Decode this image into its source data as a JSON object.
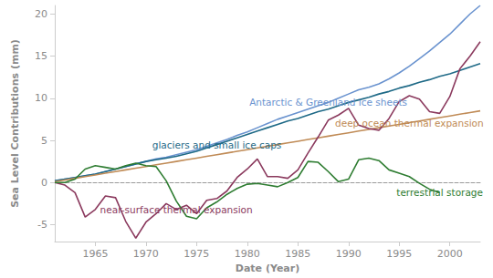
{
  "chart_data": {
    "type": "line",
    "x_label": "Date (Year)",
    "y_label": "Sea Level Contributions (mm)",
    "x": [
      1961,
      1962,
      1963,
      1964,
      1965,
      1966,
      1967,
      1968,
      1969,
      1970,
      1971,
      1972,
      1973,
      1974,
      1975,
      1976,
      1977,
      1978,
      1979,
      1980,
      1981,
      1982,
      1983,
      1984,
      1985,
      1986,
      1987,
      1988,
      1989,
      1990,
      1991,
      1992,
      1993,
      1994,
      1995,
      1996,
      1997,
      1998,
      1999,
      2000,
      2001,
      2002,
      2003
    ],
    "series": [
      {
        "name": "Antarctic & Greenland ice sheets",
        "color": "#6a93cf",
        "values": [
          0.2,
          0.4,
          0.6,
          0.8,
          1.0,
          1.3,
          1.6,
          1.9,
          2.2,
          2.5,
          2.8,
          3.0,
          3.3,
          3.6,
          3.9,
          4.3,
          4.7,
          5.1,
          5.6,
          6.0,
          6.5,
          7.0,
          7.5,
          7.9,
          8.3,
          8.7,
          9.1,
          9.5,
          10.0,
          10.5,
          11.0,
          11.3,
          11.7,
          12.3,
          13.0,
          13.8,
          14.7,
          15.6,
          16.6,
          17.6,
          18.8,
          20.0,
          21.0
        ]
      },
      {
        "name": "glaciers and small ice caps",
        "color": "#1f6a87",
        "values": [
          0.2,
          0.4,
          0.6,
          0.8,
          1.0,
          1.3,
          1.6,
          1.9,
          2.2,
          2.5,
          2.7,
          2.9,
          3.1,
          3.4,
          3.7,
          4.1,
          4.5,
          4.9,
          5.3,
          5.7,
          6.1,
          6.5,
          6.9,
          7.3,
          7.6,
          8.0,
          8.4,
          8.7,
          9.1,
          9.5,
          9.8,
          10.1,
          10.5,
          10.8,
          11.2,
          11.5,
          11.9,
          12.2,
          12.6,
          12.9,
          13.3,
          13.7,
          14.1
        ]
      },
      {
        "name": "deep ocean thermal expansion",
        "color": "#c08b56",
        "values": [
          0.1,
          0.3,
          0.5,
          0.7,
          0.9,
          1.1,
          1.3,
          1.5,
          1.7,
          1.9,
          2.1,
          2.3,
          2.5,
          2.7,
          2.9,
          3.1,
          3.3,
          3.5,
          3.7,
          3.9,
          4.1,
          4.3,
          4.5,
          4.7,
          4.9,
          5.1,
          5.3,
          5.5,
          5.7,
          5.9,
          6.1,
          6.3,
          6.5,
          6.7,
          6.9,
          7.1,
          7.3,
          7.5,
          7.7,
          7.9,
          8.1,
          8.3,
          8.5
        ]
      },
      {
        "name": "near-surface thermal expansion",
        "color": "#8b3a5e",
        "values": [
          0,
          -0.3,
          -1.2,
          -4.1,
          -3.2,
          -1.6,
          -1.8,
          -4.6,
          -6.6,
          -4.7,
          -3.7,
          -2.5,
          -3.2,
          -2.7,
          -3.7,
          -2.1,
          -1.9,
          -1.0,
          0.6,
          1.6,
          2.8,
          0.7,
          0.7,
          0.5,
          1.5,
          3.5,
          5.4,
          7.4,
          8.0,
          8.8,
          6.8,
          6.4,
          6.2,
          7.6,
          9.6,
          10.3,
          9.9,
          8.4,
          8.2,
          10.2,
          13.5,
          15.0,
          16.7
        ]
      },
      {
        "name": "terrestrial storage",
        "color": "#2f7d32",
        "values": [
          0,
          0,
          0.4,
          1.6,
          2.0,
          1.8,
          1.6,
          2.0,
          2.3,
          2.0,
          1.9,
          0.2,
          -2.2,
          -4.0,
          -4.3,
          -3.0,
          -2.3,
          -1.4,
          -0.7,
          -0.2,
          -0.1,
          -0.3,
          -0.5,
          0.0,
          0.6,
          2.5,
          2.4,
          1.3,
          0.1,
          0.4,
          2.7,
          2.9,
          2.6,
          1.5,
          1.1,
          0.7,
          -0.1,
          -0.8,
          -1.2,
          null,
          null,
          null,
          null
        ]
      }
    ],
    "xlim": [
      1961,
      2003
    ],
    "xticks": [
      1965,
      1970,
      1975,
      1980,
      1985,
      1990,
      1995,
      2000
    ],
    "ylim": [
      -7,
      21
    ],
    "yticks": [
      -5,
      0,
      5,
      10,
      15,
      20
    ],
    "grid": false
  }
}
